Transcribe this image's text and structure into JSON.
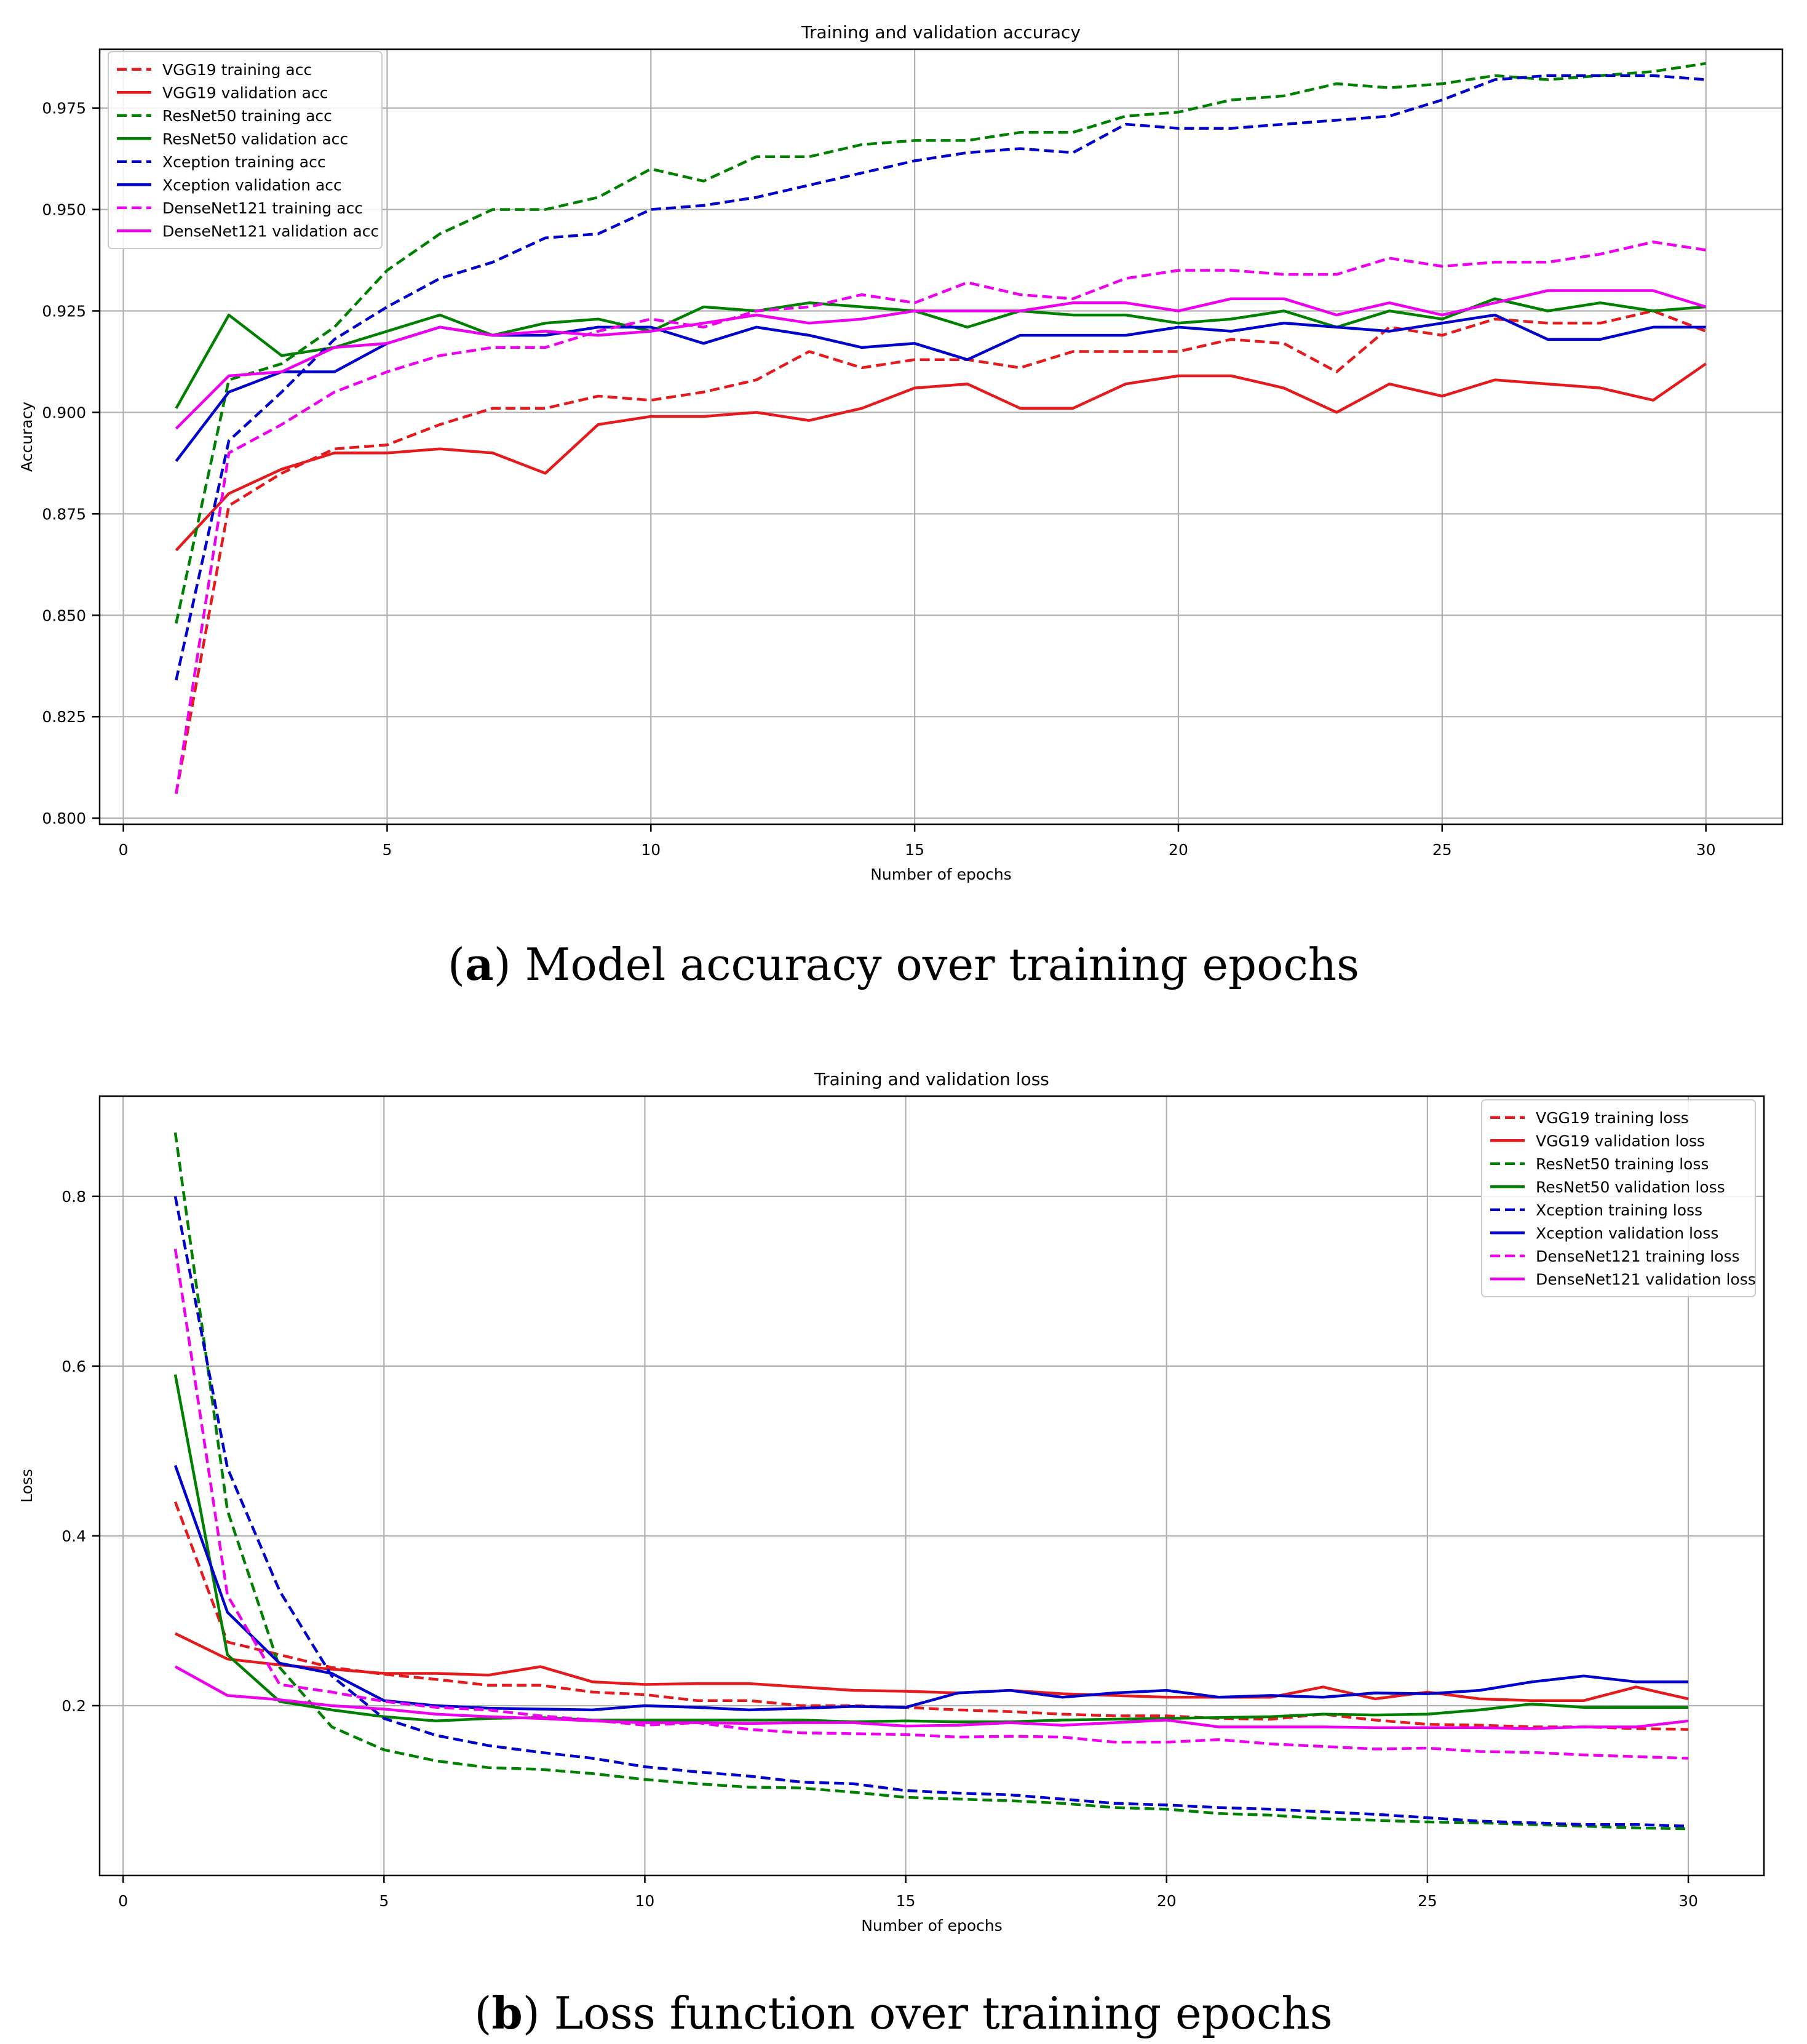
{
  "chart_data": [
    {
      "type": "line",
      "title": "Training and validation accuracy",
      "xlabel": "Number of epochs",
      "ylabel": "Accuracy",
      "xlim": [
        -0.45,
        31.45
      ],
      "ylim": [
        0.7985,
        0.9895
      ],
      "xticks": [
        0,
        5,
        10,
        15,
        20,
        25,
        30
      ],
      "xtick_labels": [
        "0",
        "5",
        "10",
        "15",
        "20",
        "25",
        "30"
      ],
      "yticks": [
        0.8,
        0.825,
        0.85,
        0.875,
        0.9,
        0.925,
        0.95,
        0.975
      ],
      "ytick_labels": [
        "0.800",
        "0.825",
        "0.850",
        "0.875",
        "0.900",
        "0.925",
        "0.950",
        "0.975"
      ],
      "grid": true,
      "legend": "upper-left",
      "x": [
        1,
        2,
        3,
        4,
        5,
        6,
        7,
        8,
        9,
        10,
        11,
        12,
        13,
        14,
        15,
        16,
        17,
        18,
        19,
        20,
        21,
        22,
        23,
        24,
        25,
        26,
        27,
        28,
        29,
        30
      ],
      "series": [
        {
          "name": "VGG19 training acc",
          "color": "#e41a1c",
          "dash": true,
          "values": [
            0.806,
            0.877,
            0.885,
            0.891,
            0.892,
            0.897,
            0.901,
            0.901,
            0.904,
            0.903,
            0.905,
            0.908,
            0.915,
            0.911,
            0.913,
            0.913,
            0.911,
            0.915,
            0.915,
            0.915,
            0.918,
            0.917,
            0.91,
            0.921,
            0.919,
            0.923,
            0.922,
            0.922,
            0.925,
            0.92
          ]
        },
        {
          "name": "VGG19 validation acc",
          "color": "#e41a1c",
          "dash": false,
          "values": [
            0.866,
            0.88,
            0.886,
            0.89,
            0.89,
            0.891,
            0.89,
            0.885,
            0.897,
            0.899,
            0.899,
            0.9,
            0.898,
            0.901,
            0.906,
            0.907,
            0.901,
            0.901,
            0.907,
            0.909,
            0.909,
            0.906,
            0.9,
            0.907,
            0.904,
            0.908,
            0.907,
            0.906,
            0.903,
            0.912
          ]
        },
        {
          "name": "ResNet50 training acc",
          "color": "#008000",
          "dash": true,
          "values": [
            0.848,
            0.908,
            0.912,
            0.921,
            0.935,
            0.944,
            0.95,
            0.95,
            0.953,
            0.96,
            0.957,
            0.963,
            0.963,
            0.966,
            0.967,
            0.967,
            0.969,
            0.969,
            0.973,
            0.974,
            0.977,
            0.978,
            0.981,
            0.98,
            0.981,
            0.983,
            0.982,
            0.983,
            0.984,
            0.986
          ]
        },
        {
          "name": "ResNet50 validation acc",
          "color": "#008000",
          "dash": false,
          "values": [
            0.901,
            0.924,
            0.914,
            0.916,
            0.92,
            0.924,
            0.919,
            0.922,
            0.923,
            0.92,
            0.926,
            0.925,
            0.927,
            0.926,
            0.925,
            0.921,
            0.925,
            0.924,
            0.924,
            0.922,
            0.923,
            0.925,
            0.921,
            0.925,
            0.923,
            0.928,
            0.925,
            0.927,
            0.925,
            0.926
          ]
        },
        {
          "name": "Xception training acc",
          "color": "#0000cc",
          "dash": true,
          "values": [
            0.834,
            0.893,
            0.905,
            0.918,
            0.926,
            0.933,
            0.937,
            0.943,
            0.944,
            0.95,
            0.951,
            0.953,
            0.956,
            0.959,
            0.962,
            0.964,
            0.965,
            0.964,
            0.971,
            0.97,
            0.97,
            0.971,
            0.972,
            0.973,
            0.977,
            0.982,
            0.983,
            0.983,
            0.983,
            0.982
          ]
        },
        {
          "name": "Xception validation acc",
          "color": "#0000cc",
          "dash": false,
          "values": [
            0.888,
            0.905,
            0.91,
            0.91,
            0.917,
            0.921,
            0.919,
            0.919,
            0.921,
            0.921,
            0.917,
            0.921,
            0.919,
            0.916,
            0.917,
            0.913,
            0.919,
            0.919,
            0.919,
            0.921,
            0.92,
            0.922,
            0.921,
            0.92,
            0.922,
            0.924,
            0.918,
            0.918,
            0.921,
            0.921
          ]
        },
        {
          "name": "DenseNet121 training acc",
          "color": "#ee00ee",
          "dash": true,
          "values": [
            0.806,
            0.89,
            0.897,
            0.905,
            0.91,
            0.914,
            0.916,
            0.916,
            0.92,
            0.923,
            0.921,
            0.925,
            0.926,
            0.929,
            0.927,
            0.932,
            0.929,
            0.928,
            0.933,
            0.935,
            0.935,
            0.934,
            0.934,
            0.938,
            0.936,
            0.937,
            0.937,
            0.939,
            0.942,
            0.94
          ]
        },
        {
          "name": "DenseNet121 validation acc",
          "color": "#ee00ee",
          "dash": false,
          "values": [
            0.896,
            0.909,
            0.91,
            0.916,
            0.917,
            0.921,
            0.919,
            0.92,
            0.919,
            0.92,
            0.922,
            0.924,
            0.922,
            0.923,
            0.925,
            0.925,
            0.925,
            0.927,
            0.927,
            0.925,
            0.928,
            0.928,
            0.924,
            0.927,
            0.924,
            0.927,
            0.93,
            0.93,
            0.93,
            0.926
          ]
        }
      ]
    },
    {
      "type": "line",
      "title": "Training and validation loss",
      "xlabel": "Number of epochs",
      "ylabel": "Loss",
      "xlim": [
        -0.45,
        31.45
      ],
      "ylim": [
        0.0,
        0.918
      ],
      "xticks": [
        0,
        5,
        10,
        15,
        20,
        25,
        30
      ],
      "xtick_labels": [
        "0",
        "5",
        "10",
        "15",
        "20",
        "25",
        "30"
      ],
      "yticks": [
        0.2,
        0.4,
        0.6,
        0.8
      ],
      "ytick_labels": [
        "0.2",
        "0.4",
        "0.6",
        "0.8"
      ],
      "grid": true,
      "legend": "upper-right",
      "x": [
        1,
        2,
        3,
        4,
        5,
        6,
        7,
        8,
        9,
        10,
        11,
        12,
        13,
        14,
        15,
        16,
        17,
        18,
        19,
        20,
        21,
        22,
        23,
        24,
        25,
        26,
        27,
        28,
        29,
        30
      ],
      "series": [
        {
          "name": "VGG19 training loss",
          "color": "#e41a1c",
          "dash": true,
          "values": [
            0.44,
            0.275,
            0.26,
            0.245,
            0.237,
            0.231,
            0.224,
            0.224,
            0.216,
            0.213,
            0.206,
            0.206,
            0.2,
            0.2,
            0.198,
            0.195,
            0.193,
            0.19,
            0.188,
            0.188,
            0.185,
            0.184,
            0.19,
            0.183,
            0.178,
            0.177,
            0.175,
            0.175,
            0.173,
            0.172
          ]
        },
        {
          "name": "VGG19 validation loss",
          "color": "#e41a1c",
          "dash": false,
          "values": [
            0.285,
            0.255,
            0.248,
            0.243,
            0.238,
            0.238,
            0.236,
            0.246,
            0.228,
            0.225,
            0.226,
            0.226,
            0.222,
            0.218,
            0.217,
            0.215,
            0.218,
            0.214,
            0.212,
            0.21,
            0.21,
            0.21,
            0.222,
            0.208,
            0.216,
            0.208,
            0.206,
            0.206,
            0.222,
            0.208
          ]
        },
        {
          "name": "ResNet50 training loss",
          "color": "#008000",
          "dash": true,
          "values": [
            0.875,
            0.43,
            0.245,
            0.175,
            0.148,
            0.135,
            0.127,
            0.125,
            0.12,
            0.113,
            0.108,
            0.104,
            0.103,
            0.098,
            0.092,
            0.09,
            0.088,
            0.085,
            0.08,
            0.078,
            0.073,
            0.071,
            0.067,
            0.065,
            0.063,
            0.062,
            0.06,
            0.058,
            0.056,
            0.055
          ]
        },
        {
          "name": "ResNet50 validation loss",
          "color": "#008000",
          "dash": false,
          "values": [
            0.59,
            0.26,
            0.205,
            0.195,
            0.187,
            0.182,
            0.185,
            0.186,
            0.183,
            0.183,
            0.183,
            0.183,
            0.183,
            0.181,
            0.182,
            0.181,
            0.181,
            0.183,
            0.184,
            0.185,
            0.186,
            0.187,
            0.19,
            0.189,
            0.19,
            0.195,
            0.202,
            0.198,
            0.198,
            0.198
          ]
        },
        {
          "name": "Xception training loss",
          "color": "#0000cc",
          "dash": true,
          "values": [
            0.8,
            0.48,
            0.335,
            0.235,
            0.185,
            0.165,
            0.153,
            0.145,
            0.138,
            0.128,
            0.122,
            0.117,
            0.11,
            0.108,
            0.1,
            0.097,
            0.095,
            0.09,
            0.085,
            0.083,
            0.08,
            0.078,
            0.075,
            0.072,
            0.068,
            0.064,
            0.062,
            0.06,
            0.06,
            0.058
          ]
        },
        {
          "name": "Xception validation loss",
          "color": "#0000cc",
          "dash": false,
          "values": [
            0.483,
            0.31,
            0.25,
            0.238,
            0.206,
            0.2,
            0.197,
            0.196,
            0.195,
            0.2,
            0.198,
            0.195,
            0.197,
            0.199,
            0.198,
            0.215,
            0.218,
            0.21,
            0.215,
            0.218,
            0.21,
            0.212,
            0.21,
            0.215,
            0.214,
            0.218,
            0.228,
            0.235,
            0.228,
            0.228
          ]
        },
        {
          "name": "DenseNet121 training loss",
          "color": "#ee00ee",
          "dash": true,
          "values": [
            0.738,
            0.33,
            0.225,
            0.216,
            0.205,
            0.198,
            0.195,
            0.188,
            0.183,
            0.177,
            0.18,
            0.172,
            0.168,
            0.167,
            0.166,
            0.163,
            0.164,
            0.163,
            0.157,
            0.157,
            0.16,
            0.155,
            0.152,
            0.149,
            0.15,
            0.146,
            0.145,
            0.142,
            0.14,
            0.138
          ]
        },
        {
          "name": "DenseNet121 validation loss",
          "color": "#ee00ee",
          "dash": false,
          "values": [
            0.246,
            0.212,
            0.207,
            0.2,
            0.196,
            0.19,
            0.187,
            0.185,
            0.182,
            0.18,
            0.18,
            0.179,
            0.18,
            0.18,
            0.176,
            0.177,
            0.18,
            0.177,
            0.18,
            0.183,
            0.175,
            0.175,
            0.175,
            0.174,
            0.174,
            0.174,
            0.173,
            0.175,
            0.175,
            0.182
          ]
        }
      ]
    }
  ],
  "captions": {
    "a_letter": "a",
    "a_text": " Model accuracy over training epochs",
    "b_letter": "b",
    "b_text": " Loss function over training epochs"
  }
}
